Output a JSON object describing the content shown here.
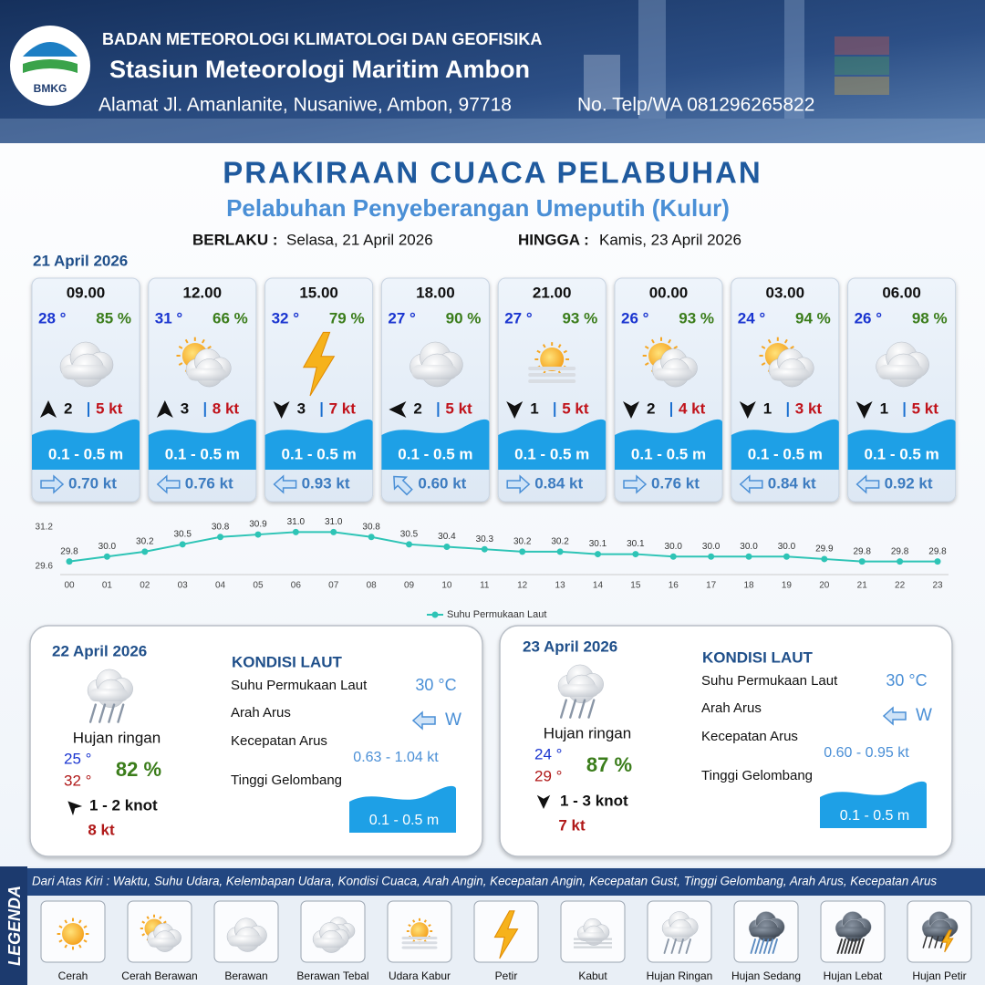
{
  "header": {
    "logo_text": "BMKG",
    "org": "BADAN METEOROLOGI KLIMATOLOGI DAN GEOFISIKA",
    "station": "Stasiun Meteorologi Maritim Ambon",
    "address": "Alamat Jl. Amanlanite, Nusaniwe, Ambon, 97718",
    "phone": "No. Telp/WA  081296265822"
  },
  "title": "PRAKIRAAN CUACA PELABUHAN",
  "subtitle": "Pelabuhan Penyeberangan Umeputih (Kulur)",
  "validity": {
    "from_label": "BERLAKU :",
    "from": "Selasa, 21 April 2026",
    "to_label": "HINGGA :",
    "to": "Kamis, 23 April 2026"
  },
  "day1": {
    "date": "21 April 2026",
    "cards": [
      {
        "time": "09.00",
        "temp": "28 °",
        "humidity": "85 %",
        "wind": "2",
        "gust": "5 kt",
        "wave": "0.1 - 0.5 m",
        "current": "0.70 kt"
      },
      {
        "time": "12.00",
        "temp": "31 °",
        "humidity": "66 %",
        "wind": "3",
        "gust": "8 kt",
        "wave": "0.1 - 0.5 m",
        "current": "0.76 kt"
      },
      {
        "time": "15.00",
        "temp": "32 °",
        "humidity": "79 %",
        "wind": "3",
        "gust": "7 kt",
        "wave": "0.1 - 0.5 m",
        "current": "0.93 kt"
      },
      {
        "time": "18.00",
        "temp": "27 °",
        "humidity": "90 %",
        "wind": "2",
        "gust": "5 kt",
        "wave": "0.1 - 0.5 m",
        "current": "0.60 kt"
      },
      {
        "time": "21.00",
        "temp": "27 °",
        "humidity": "93 %",
        "wind": "1",
        "gust": "5 kt",
        "wave": "0.1 - 0.5 m",
        "current": "0.84 kt"
      },
      {
        "time": "00.00",
        "temp": "26 °",
        "humidity": "93 %",
        "wind": "2",
        "gust": "4 kt",
        "wave": "0.1 - 0.5 m",
        "current": "0.76 kt"
      },
      {
        "time": "03.00",
        "temp": "24 °",
        "humidity": "94 %",
        "wind": "1",
        "gust": "3 kt",
        "wave": "0.1 - 0.5 m",
        "current": "0.84 kt"
      },
      {
        "time": "06.00",
        "temp": "26 °",
        "humidity": "98 %",
        "wind": "1",
        "gust": "5 kt",
        "wave": "0.1 - 0.5 m",
        "current": "0.92 kt"
      }
    ]
  },
  "chart_data": {
    "type": "line",
    "categories": [
      "00",
      "01",
      "02",
      "03",
      "04",
      "05",
      "06",
      "07",
      "08",
      "09",
      "10",
      "11",
      "12",
      "13",
      "14",
      "15",
      "16",
      "17",
      "18",
      "19",
      "20",
      "21",
      "22",
      "23"
    ],
    "series": [
      {
        "name": "Suhu Permukaan Laut",
        "color": "#2ec4b6",
        "values": [
          29.8,
          30.0,
          30.2,
          30.5,
          30.8,
          30.9,
          31.0,
          31.0,
          30.8,
          30.5,
          30.4,
          30.3,
          30.2,
          30.2,
          30.1,
          30.1,
          30.0,
          30.0,
          30.0,
          30.0,
          29.9,
          29.8,
          29.8,
          29.8
        ],
        "value_labels": [
          "29.8",
          "30.0",
          "30.2",
          "30.5",
          "30.8",
          "30.9",
          "31.0",
          "31.0",
          "30.8",
          "30.5",
          "30.4",
          "30.3",
          "30.2",
          "30.2",
          "30.1",
          "30.1",
          "30.0",
          "30.0",
          "30.0",
          "30.0",
          "29.9",
          "29.8",
          "29.8",
          "29.8"
        ]
      }
    ],
    "ylim": [
      29.6,
      31.2
    ],
    "yticks": [
      29.6,
      31.2
    ],
    "legend": "bottom"
  },
  "days": [
    {
      "date": "22 April 2026",
      "condition": "Hujan ringan",
      "temp_min": "25 °",
      "temp_max": "32 °",
      "humidity": "82 %",
      "wind": "1 - 2 knot",
      "gust": "8 kt",
      "sea_heading": "KONDISI LAUT",
      "sst_label": "Suhu Permukaan Laut",
      "sst": "30 °C",
      "current_dir_label": "Arah Arus",
      "current_dir": "W",
      "current_speed_label": "Kecepatan Arus",
      "current_speed": "0.63 - 1.04 kt",
      "wave_label": "Tinggi Gelombang",
      "wave": "0.1 - 0.5 m"
    },
    {
      "date": "23 April 2026",
      "condition": "Hujan ringan",
      "temp_min": "24 °",
      "temp_max": "29 °",
      "humidity": "87 %",
      "wind": "1 - 3 knot",
      "gust": "7 kt",
      "sea_heading": "KONDISI LAUT",
      "sst_label": "Suhu Permukaan Laut",
      "sst": "30 °C",
      "current_dir_label": "Arah Arus",
      "current_dir": "W",
      "current_speed_label": "Kecepatan Arus",
      "current_speed": "0.60 - 0.95 kt",
      "wave_label": "Tinggi Gelombang",
      "wave": "0.1 - 0.5 m"
    }
  ],
  "legend": {
    "title": "LEGENDA",
    "note": "Dari Atas Kiri : Waktu, Suhu Udara, Kelembapan Udara, Kondisi Cuaca, Arah Angin, Kecepatan Angin, Kecepatan Gust, Tinggi Gelombang, Arah Arus, Kecepatan Arus",
    "items": [
      "Cerah",
      "Cerah Berawan",
      "Berawan",
      "Berawan Tebal",
      "Udara Kabur",
      "Petir",
      "Kabut",
      "Hujan Ringan",
      "Hujan Sedang",
      "Hujan Lebat",
      "Hujan Petir"
    ]
  }
}
